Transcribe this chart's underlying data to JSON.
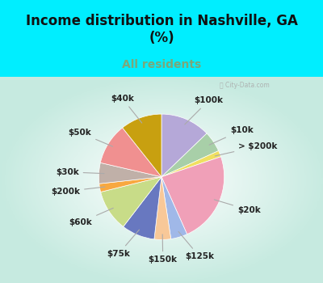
{
  "title": "Income distribution in Nashville, GA\n(%)",
  "subtitle": "All residents",
  "title_color": "#111111",
  "subtitle_color": "#7aa87a",
  "bg_outer": "#00eeff",
  "bg_inner": "#e0f0e8",
  "watermark": "ⓘ City-Data.com",
  "labels": [
    "$100k",
    "$10k",
    "> $200k",
    "$20k",
    "$125k",
    "$150k",
    "$75k",
    "$60k",
    "$200k",
    "$30k",
    "$50k",
    "$40k"
  ],
  "values": [
    12,
    5,
    1.5,
    22,
    4,
    4,
    8,
    10,
    2,
    5,
    10,
    10
  ],
  "colors": [
    "#b5a8d8",
    "#a8cfa8",
    "#f0e060",
    "#f0a0b8",
    "#a0b8e8",
    "#f8c898",
    "#6878c0",
    "#c8dc88",
    "#f8a840",
    "#c0b0a8",
    "#f09090",
    "#c8a010"
  ],
  "title_fontsize": 12,
  "subtitle_fontsize": 10,
  "label_fontsize": 7.5
}
